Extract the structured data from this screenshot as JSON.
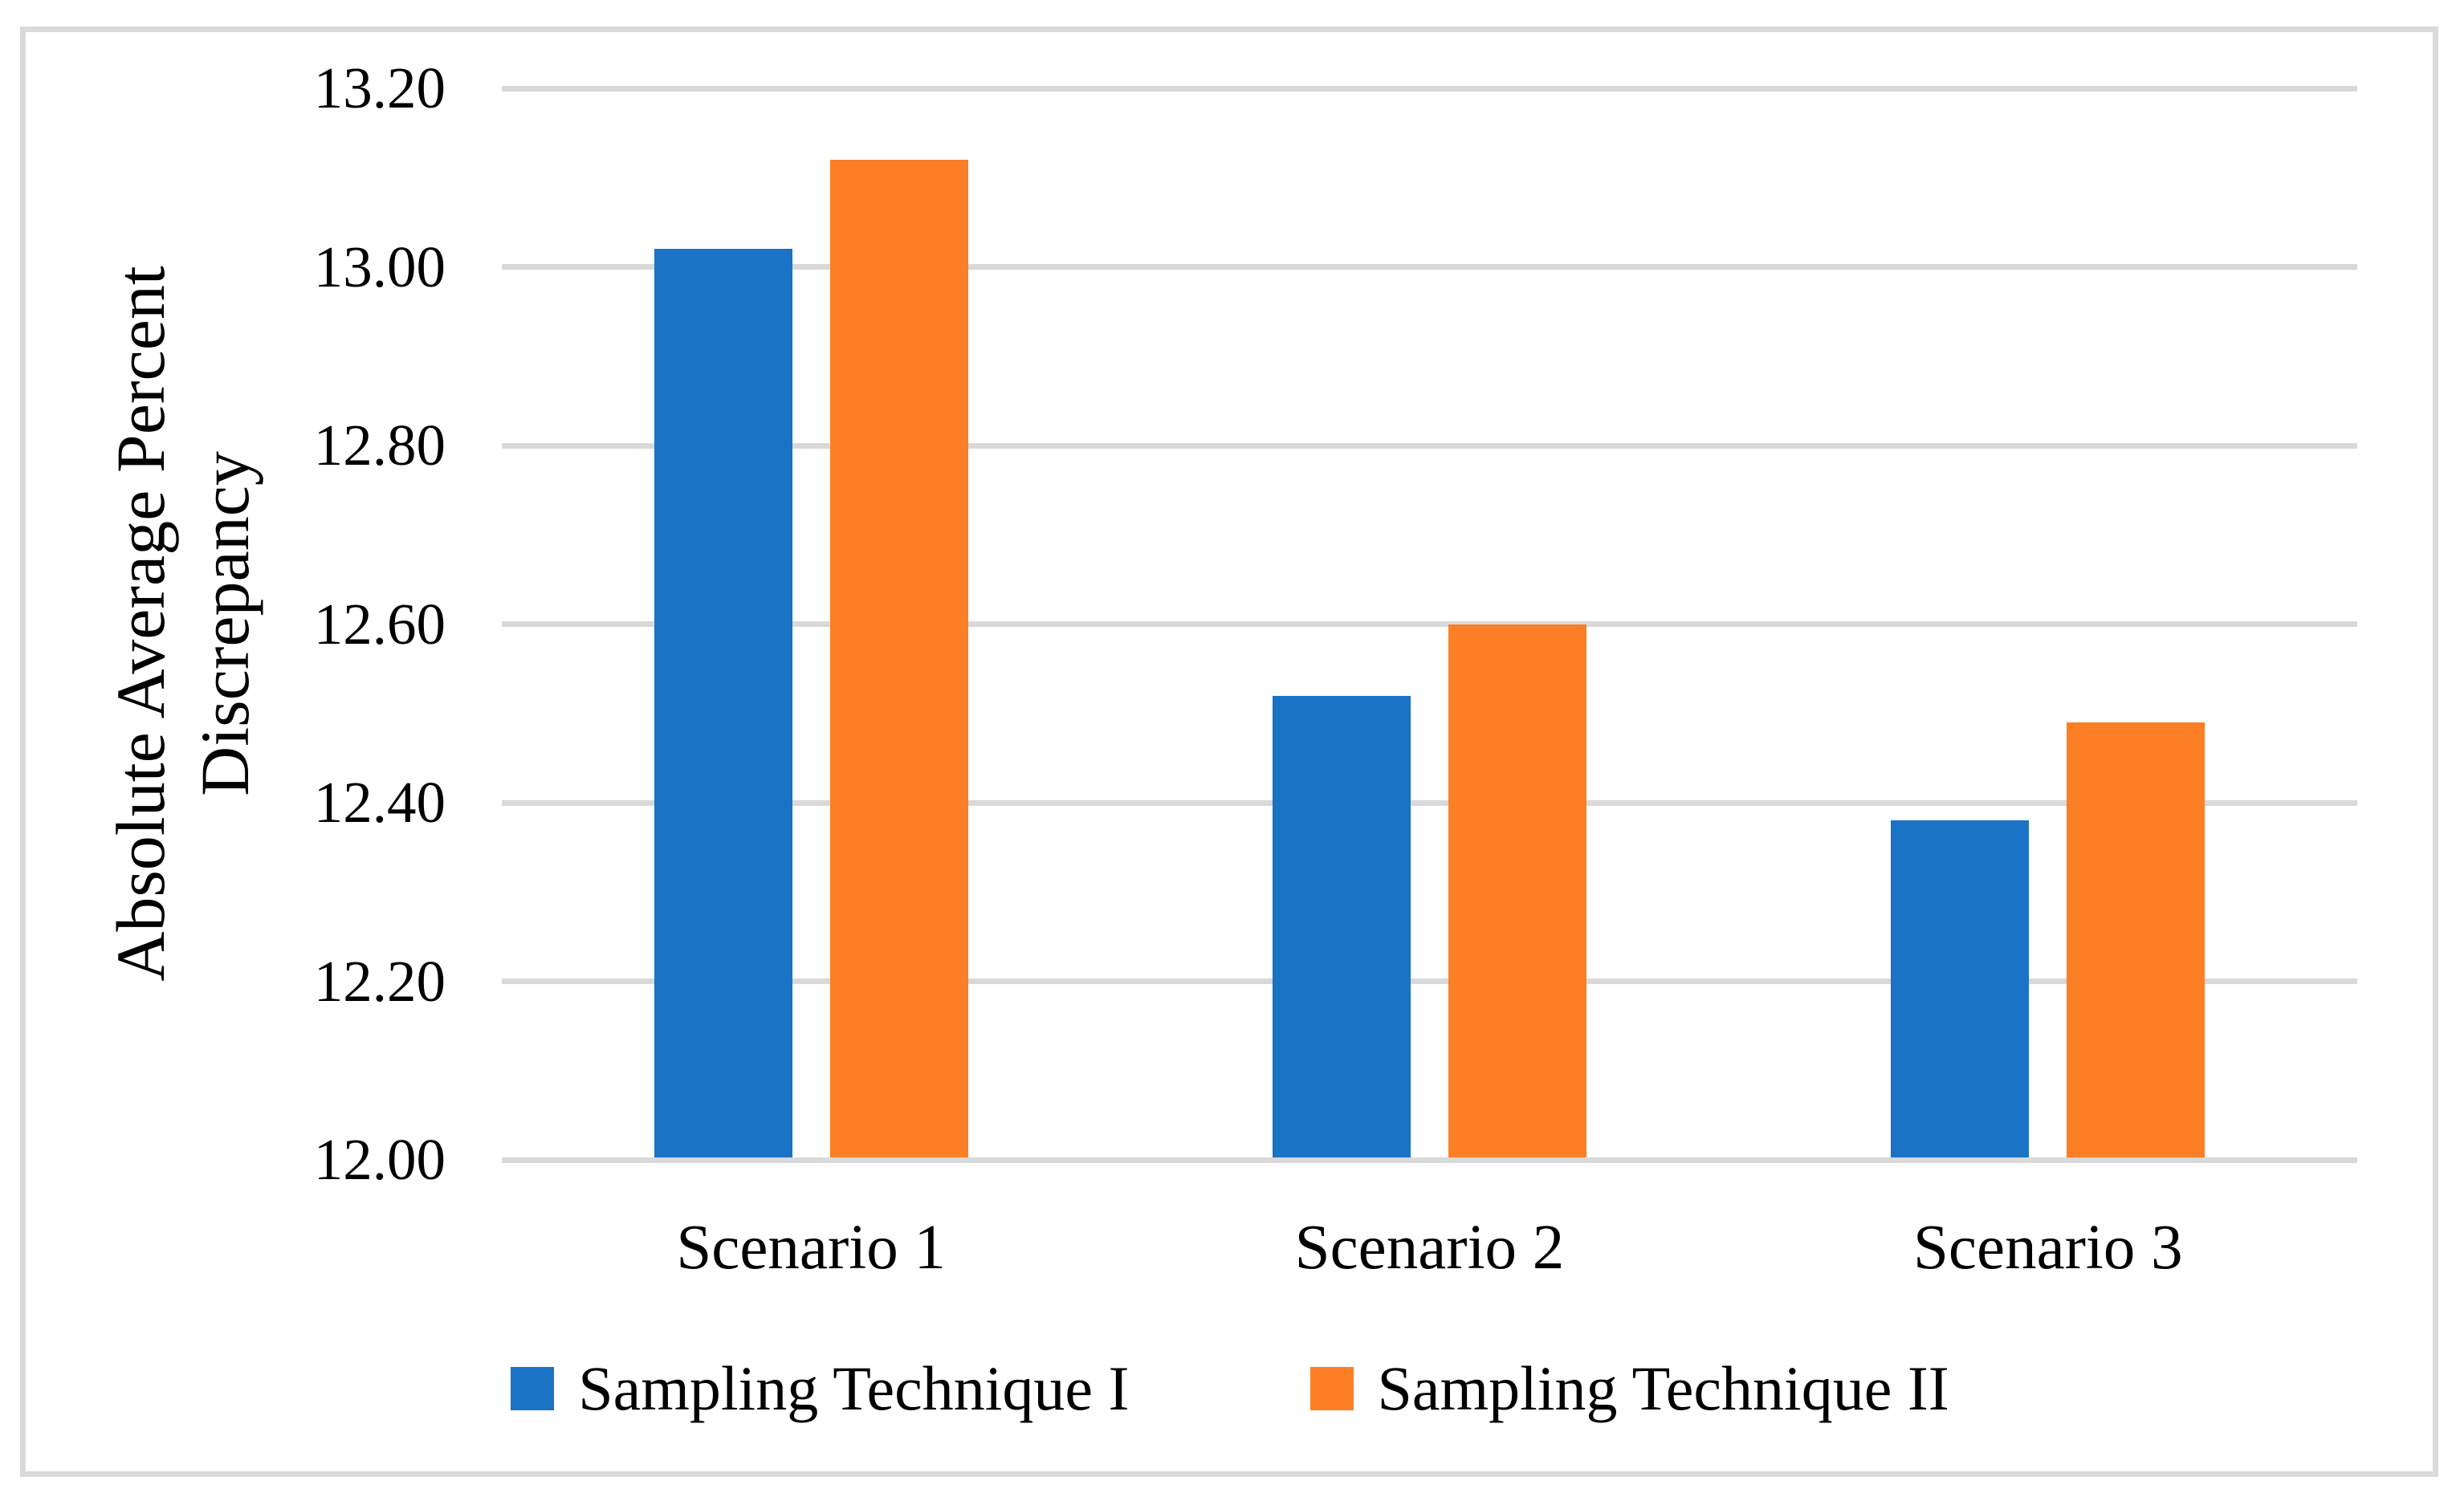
{
  "figure": {
    "background_color": "#FFFFFF",
    "border_color": "#DADADA",
    "text_color": "#000000"
  },
  "chart_data": {
    "type": "bar",
    "title": "",
    "categories": [
      "Scenario 1",
      "Scenario 2",
      "Scenario 3"
    ],
    "series": [
      {
        "name": "Sampling Technique I",
        "color": "#1A73C4",
        "values": [
          13.02,
          12.52,
          12.38
        ]
      },
      {
        "name": "Sampling Technique II",
        "color": "#FC7E25",
        "values": [
          13.12,
          12.6,
          12.49
        ]
      }
    ],
    "xlabel": "",
    "ylabel": "Absolute Average Percent Discrepancy",
    "ylabel_lines": [
      "Absolute Average Percent",
      "Discrepancy"
    ],
    "ylim": [
      12.0,
      13.2
    ],
    "ytick_step": 0.2,
    "yticks": [
      "13.20",
      "13.00",
      "12.80",
      "12.60",
      "12.40",
      "12.20",
      "12.00"
    ],
    "grid": true,
    "gridline_color": "#D9D9D9",
    "legend_position": "bottom"
  }
}
